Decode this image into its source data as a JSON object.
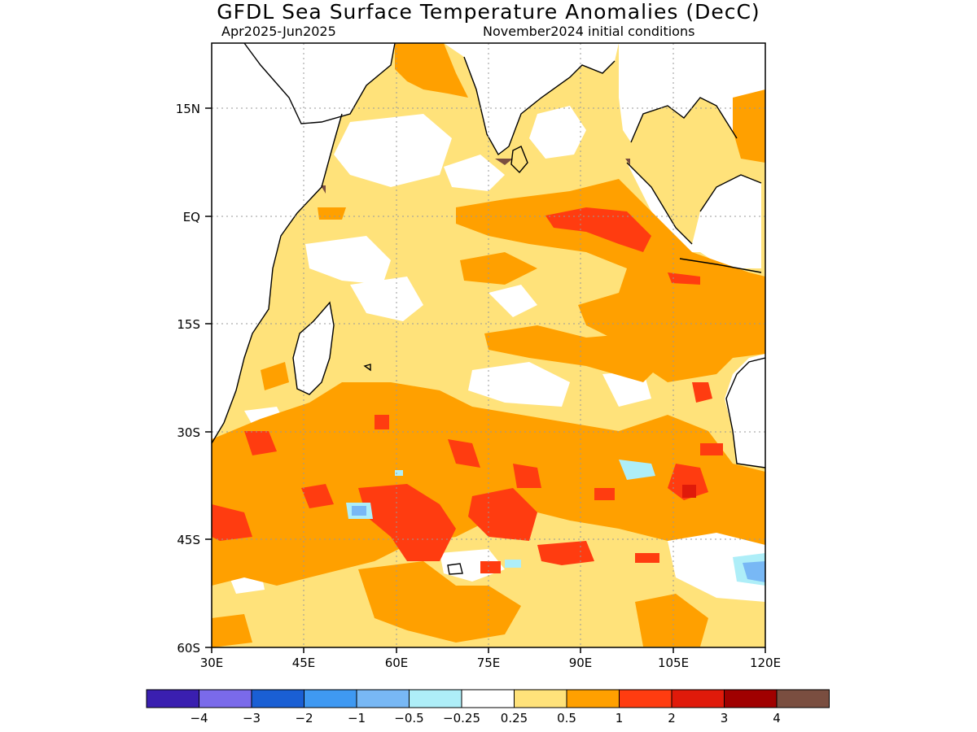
{
  "title": "GFDL Sea Surface Temperature Anomalies (DecC)",
  "subtitle_left": "Apr2025-Jun2025",
  "subtitle_right": "November2024 initial conditions",
  "lat_labels": [
    "15N",
    "EQ",
    "15S",
    "30S",
    "45S",
    "60S"
  ],
  "lon_labels": [
    "30E",
    "45E",
    "60E",
    "75E",
    "90E",
    "105E",
    "120E"
  ],
  "colorbar": {
    "colors": [
      "#3a1fb0",
      "#7a6aea",
      "#1a5fd4",
      "#3f99f2",
      "#78b8f5",
      "#aeeef8",
      "#ffffff",
      "#ffe27a",
      "#ffa000",
      "#ff3c10",
      "#e01a0a",
      "#a00000",
      "#7a4e40"
    ],
    "labels": [
      "−4",
      "−3",
      "−2",
      "−1",
      "−0.5",
      "−0.25",
      "0.25",
      "0.5",
      "1",
      "2",
      "3",
      "4"
    ]
  },
  "anomaly_colors": {
    "white": "#ffffff",
    "light_blue": "#aeeef8",
    "blue": "#78b8f5",
    "yellow": "#ffe27a",
    "orange": "#ffa000",
    "red": "#ff3c10",
    "dark_red": "#e01a0a",
    "brown": "#7a4e40"
  }
}
